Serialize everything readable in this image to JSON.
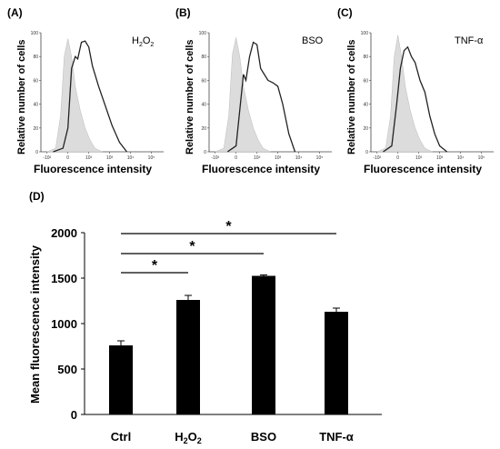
{
  "chart_data": [
    {
      "type": "area",
      "panel": "(A)",
      "ylabel": "Relative number of cells",
      "xlabel": "Fluorescence intensity",
      "legend": "H2O2",
      "legend_main": "H",
      "legend_sub1": "2",
      "legend_mid": "O",
      "legend_sub2": "2",
      "x_ticks": [
        "-10²",
        "0",
        "10²",
        "10³",
        "10⁴",
        "10⁵"
      ],
      "y_ticks": [
        "0",
        "20",
        "40",
        "60",
        "80",
        "100"
      ],
      "ylim": [
        0,
        100
      ],
      "series": [
        {
          "role": "control",
          "x": [
            0.05,
            0.12,
            0.16,
            0.19,
            0.22,
            0.25,
            0.28,
            0.32,
            0.36,
            0.4,
            0.44,
            0.5
          ],
          "values": [
            0,
            3,
            30,
            80,
            95,
            80,
            55,
            35,
            20,
            10,
            3,
            0
          ]
        },
        {
          "role": "treated",
          "x": [
            0.1,
            0.18,
            0.22,
            0.25,
            0.28,
            0.3,
            0.33,
            0.36,
            0.39,
            0.42,
            0.47,
            0.52,
            0.58,
            0.64,
            0.7
          ],
          "values": [
            0,
            3,
            20,
            70,
            80,
            78,
            92,
            93,
            88,
            72,
            55,
            40,
            22,
            8,
            0
          ]
        }
      ]
    },
    {
      "type": "area",
      "panel": "(B)",
      "ylabel": "Relative number of cells",
      "xlabel": "Fluorescence intensity",
      "legend": "BSO",
      "x_ticks": [
        "-10²",
        "0",
        "10²",
        "10³",
        "10⁴",
        "10⁵"
      ],
      "y_ticks": [
        "0",
        "20",
        "40",
        "60",
        "80",
        "100"
      ],
      "ylim": [
        0,
        100
      ],
      "series": [
        {
          "role": "control",
          "x": [
            0.05,
            0.12,
            0.16,
            0.19,
            0.22,
            0.25,
            0.28,
            0.32,
            0.36,
            0.4,
            0.44,
            0.5
          ],
          "values": [
            0,
            3,
            30,
            82,
            96,
            80,
            55,
            35,
            20,
            10,
            3,
            0
          ]
        },
        {
          "role": "treated",
          "x": [
            0.15,
            0.22,
            0.25,
            0.28,
            0.3,
            0.33,
            0.36,
            0.39,
            0.42,
            0.45,
            0.48,
            0.52,
            0.56,
            0.6,
            0.65,
            0.7
          ],
          "values": [
            0,
            5,
            35,
            65,
            60,
            80,
            92,
            90,
            70,
            65,
            60,
            58,
            55,
            40,
            15,
            0
          ]
        }
      ]
    },
    {
      "type": "area",
      "panel": "(C)",
      "ylabel": "Relative number of cells",
      "xlabel": "Fluorescence intensity",
      "legend": "TNF-α",
      "x_ticks": [
        "-10²",
        "0",
        "10²",
        "10³",
        "10⁴",
        "10⁵"
      ],
      "y_ticks": [
        "0",
        "20",
        "40",
        "60",
        "80",
        "100"
      ],
      "ylim": [
        0,
        100
      ],
      "series": [
        {
          "role": "control",
          "x": [
            0.05,
            0.12,
            0.16,
            0.19,
            0.22,
            0.25,
            0.28,
            0.32,
            0.36,
            0.4,
            0.44,
            0.5
          ],
          "values": [
            0,
            3,
            30,
            80,
            98,
            80,
            55,
            35,
            20,
            10,
            3,
            0
          ]
        },
        {
          "role": "treated",
          "x": [
            0.1,
            0.17,
            0.21,
            0.24,
            0.27,
            0.3,
            0.33,
            0.36,
            0.4,
            0.44,
            0.48,
            0.52,
            0.56,
            0.62
          ],
          "values": [
            0,
            5,
            40,
            70,
            85,
            88,
            80,
            75,
            60,
            50,
            30,
            15,
            5,
            0
          ]
        }
      ]
    },
    {
      "type": "bar",
      "panel": "(D)",
      "ylabel": "Mean fluorescence intensity",
      "categories": [
        "Ctrl",
        "H2O2",
        "BSO",
        "TNF-α"
      ],
      "cat_h2o2": {
        "main": "H",
        "sub1": "2",
        "mid": "O",
        "sub2": "2"
      },
      "values": [
        760,
        1260,
        1525,
        1130
      ],
      "errors": [
        50,
        50,
        10,
        40
      ],
      "ylim": [
        0,
        2000
      ],
      "y_ticks": [
        "0",
        "500",
        "1000",
        "1500",
        "2000"
      ],
      "significance": [
        {
          "from": 0,
          "to": 1,
          "label": "*"
        },
        {
          "from": 0,
          "to": 2,
          "label": "*"
        },
        {
          "from": 0,
          "to": 3,
          "label": "*"
        }
      ]
    }
  ]
}
